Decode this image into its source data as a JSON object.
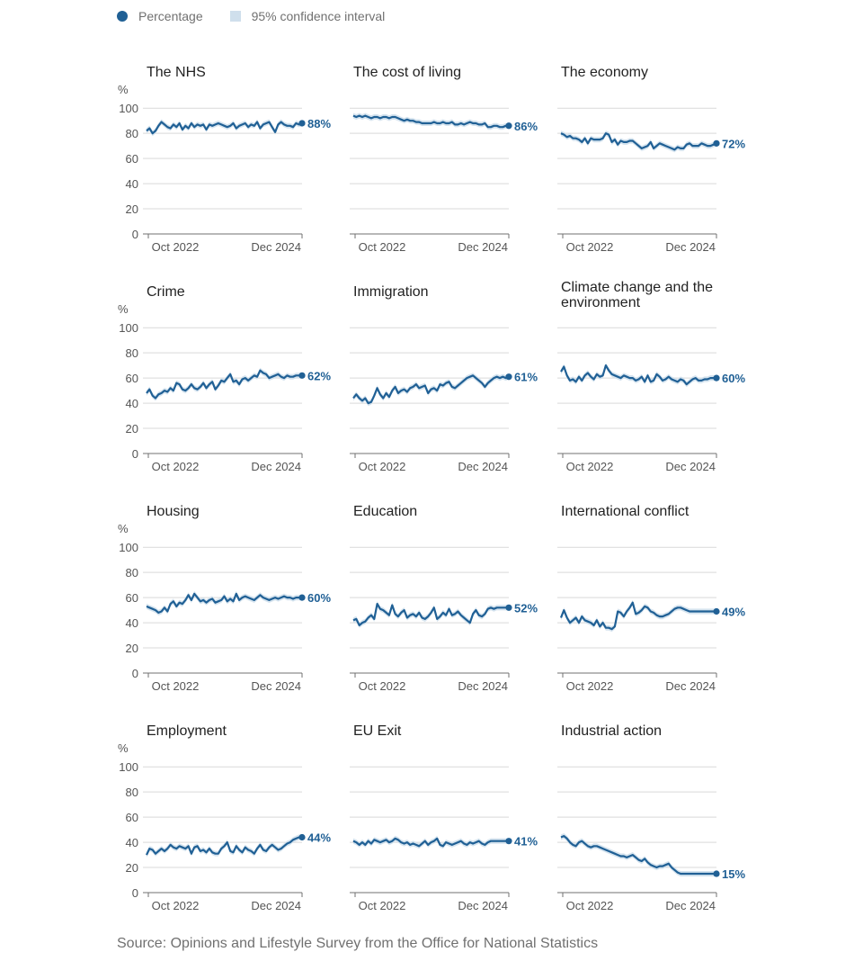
{
  "legend": {
    "percentage": "Percentage",
    "ci": "95% confidence interval"
  },
  "source": "Source: Opinions and Lifestyle Survey from the Office for National Statistics",
  "colors": {
    "line": "#206095",
    "band": "#cfdfec",
    "grid": "#d9d9d9",
    "axis": "#707070"
  },
  "axis": {
    "unit": "%",
    "yticks": [
      0,
      20,
      40,
      60,
      80,
      100
    ],
    "xtick_labels": [
      "Oct 2022",
      "Dec 2024"
    ]
  },
  "chart_data": [
    {
      "type": "line",
      "title": "The NHS",
      "final_label": "88%",
      "ylim": [
        0,
        100
      ],
      "ylabel": "%",
      "values": [
        82,
        84,
        80,
        82,
        86,
        89,
        87,
        85,
        84,
        87,
        85,
        88,
        83,
        86,
        84,
        88,
        85,
        87,
        86,
        87,
        83,
        87,
        86,
        87,
        88,
        87,
        86,
        85,
        86,
        88,
        84,
        86,
        87,
        88,
        85,
        87,
        86,
        89,
        84,
        87,
        88,
        89,
        85,
        81,
        87,
        89,
        87,
        86,
        86,
        85,
        88,
        87,
        88
      ]
    },
    {
      "type": "line",
      "title": "The cost of living",
      "final_label": "86%",
      "ylim": [
        0,
        100
      ],
      "ylabel": "",
      "values": [
        94,
        93,
        94,
        93,
        94,
        93,
        92,
        93,
        93,
        92,
        93,
        93,
        92,
        93,
        93,
        92,
        91,
        90,
        91,
        90,
        90,
        89,
        89,
        88,
        88,
        88,
        88,
        89,
        88,
        88,
        89,
        88,
        88,
        89,
        87,
        87,
        88,
        87,
        88,
        89,
        88,
        88,
        87,
        87,
        88,
        85,
        85,
        86,
        86,
        85,
        85,
        86,
        86
      ]
    },
    {
      "type": "line",
      "title": "The economy",
      "final_label": "72%",
      "ylim": [
        0,
        100
      ],
      "ylabel": "",
      "values": [
        80,
        79,
        77,
        78,
        76,
        76,
        75,
        73,
        76,
        72,
        76,
        75,
        75,
        75,
        76,
        80,
        79,
        73,
        75,
        71,
        74,
        73,
        73,
        74,
        74,
        72,
        70,
        68,
        69,
        70,
        73,
        68,
        70,
        72,
        71,
        70,
        69,
        68,
        67,
        69,
        68,
        68,
        71,
        72,
        70,
        70,
        70,
        72,
        71,
        70,
        70,
        71,
        72
      ]
    },
    {
      "type": "line",
      "title": "Crime",
      "final_label": "62%",
      "ylim": [
        0,
        100
      ],
      "ylabel": "%",
      "values": [
        48,
        51,
        46,
        44,
        47,
        48,
        50,
        49,
        52,
        50,
        56,
        55,
        51,
        50,
        52,
        55,
        52,
        51,
        53,
        56,
        52,
        55,
        57,
        51,
        54,
        58,
        57,
        60,
        63,
        57,
        58,
        55,
        59,
        60,
        58,
        60,
        62,
        61,
        66,
        64,
        63,
        60,
        61,
        62,
        63,
        61,
        60,
        62,
        61,
        61,
        62,
        62,
        62
      ]
    },
    {
      "type": "line",
      "title": "Immigration",
      "final_label": "61%",
      "ylim": [
        0,
        100
      ],
      "ylabel": "",
      "values": [
        44,
        47,
        44,
        42,
        44,
        40,
        41,
        46,
        52,
        47,
        44,
        48,
        45,
        50,
        53,
        48,
        50,
        51,
        49,
        52,
        53,
        55,
        52,
        53,
        54,
        48,
        51,
        52,
        50,
        55,
        54,
        56,
        57,
        53,
        52,
        54,
        56,
        58,
        60,
        61,
        62,
        60,
        58,
        56,
        53,
        56,
        58,
        60,
        61,
        60,
        61,
        60,
        61
      ]
    },
    {
      "type": "line",
      "title": "Climate change and the environment",
      "final_label": "60%",
      "ylim": [
        0,
        100
      ],
      "ylabel": "",
      "values": [
        65,
        69,
        62,
        58,
        59,
        57,
        61,
        58,
        62,
        64,
        61,
        59,
        63,
        61,
        62,
        70,
        66,
        63,
        62,
        61,
        60,
        62,
        61,
        60,
        60,
        58,
        59,
        61,
        57,
        62,
        57,
        58,
        63,
        61,
        58,
        59,
        61,
        59,
        58,
        57,
        59,
        58,
        55,
        57,
        59,
        60,
        58,
        58,
        59,
        59,
        60,
        60,
        60
      ]
    },
    {
      "type": "line",
      "title": "Housing",
      "final_label": "60%",
      "ylim": [
        0,
        100
      ],
      "ylabel": "%",
      "values": [
        53,
        52,
        51,
        50,
        48,
        49,
        52,
        49,
        55,
        57,
        53,
        56,
        55,
        58,
        62,
        58,
        63,
        60,
        57,
        58,
        56,
        58,
        59,
        56,
        57,
        58,
        61,
        57,
        59,
        57,
        63,
        58,
        60,
        61,
        60,
        59,
        58,
        60,
        62,
        60,
        59,
        58,
        59,
        60,
        59,
        60,
        61,
        60,
        60,
        59,
        60,
        60,
        60
      ]
    },
    {
      "type": "line",
      "title": "Education",
      "final_label": "52%",
      "ylim": [
        0,
        100
      ],
      "ylabel": "",
      "values": [
        42,
        43,
        38,
        40,
        41,
        44,
        46,
        43,
        55,
        51,
        50,
        48,
        46,
        54,
        47,
        45,
        48,
        50,
        44,
        46,
        47,
        45,
        48,
        44,
        43,
        45,
        48,
        52,
        43,
        45,
        48,
        46,
        51,
        46,
        47,
        49,
        46,
        44,
        42,
        40,
        47,
        50,
        46,
        45,
        47,
        51,
        52,
        51,
        52,
        52,
        52,
        52,
        52
      ]
    },
    {
      "type": "line",
      "title": "International conflict",
      "final_label": "49%",
      "ylim": [
        0,
        100
      ],
      "ylabel": "",
      "values": [
        44,
        50,
        44,
        40,
        42,
        44,
        40,
        45,
        42,
        41,
        40,
        38,
        42,
        37,
        40,
        36,
        36,
        35,
        37,
        49,
        48,
        45,
        49,
        52,
        56,
        47,
        48,
        50,
        53,
        52,
        49,
        48,
        46,
        45,
        45,
        46,
        47,
        49,
        51,
        52,
        52,
        51,
        50,
        49,
        49,
        49,
        49,
        49,
        49,
        49,
        49,
        49,
        49
      ]
    },
    {
      "type": "line",
      "title": "Employment",
      "final_label": "44%",
      "ylim": [
        0,
        100
      ],
      "ylabel": "%",
      "values": [
        30,
        35,
        34,
        31,
        33,
        35,
        33,
        35,
        38,
        36,
        35,
        37,
        36,
        35,
        37,
        31,
        36,
        37,
        33,
        34,
        32,
        35,
        32,
        31,
        31,
        35,
        37,
        40,
        33,
        32,
        37,
        34,
        32,
        36,
        34,
        33,
        31,
        35,
        38,
        34,
        33,
        36,
        38,
        36,
        34,
        35,
        37,
        39,
        40,
        42,
        43,
        44,
        44
      ]
    },
    {
      "type": "line",
      "title": "EU Exit",
      "final_label": "41%",
      "ylim": [
        0,
        100
      ],
      "ylabel": "",
      "values": [
        41,
        40,
        38,
        40,
        38,
        41,
        39,
        42,
        41,
        40,
        41,
        42,
        40,
        41,
        43,
        42,
        40,
        39,
        40,
        38,
        39,
        38,
        37,
        39,
        41,
        38,
        40,
        41,
        43,
        38,
        37,
        40,
        39,
        38,
        39,
        40,
        41,
        39,
        38,
        40,
        39,
        40,
        41,
        39,
        38,
        40,
        41,
        41,
        41,
        41,
        41,
        41,
        41
      ]
    },
    {
      "type": "line",
      "title": "Industrial action",
      "final_label": "15%",
      "ylim": [
        0,
        100
      ],
      "ylabel": "",
      "values": [
        44,
        45,
        43,
        40,
        38,
        37,
        40,
        41,
        39,
        37,
        36,
        37,
        37,
        36,
        35,
        34,
        33,
        32,
        31,
        30,
        29,
        29,
        28,
        29,
        30,
        28,
        26,
        25,
        27,
        24,
        22,
        21,
        20,
        21,
        21,
        22,
        23,
        20,
        18,
        16,
        15,
        15,
        15,
        15,
        15,
        15,
        15,
        15,
        15,
        15,
        15,
        15,
        15
      ]
    }
  ]
}
